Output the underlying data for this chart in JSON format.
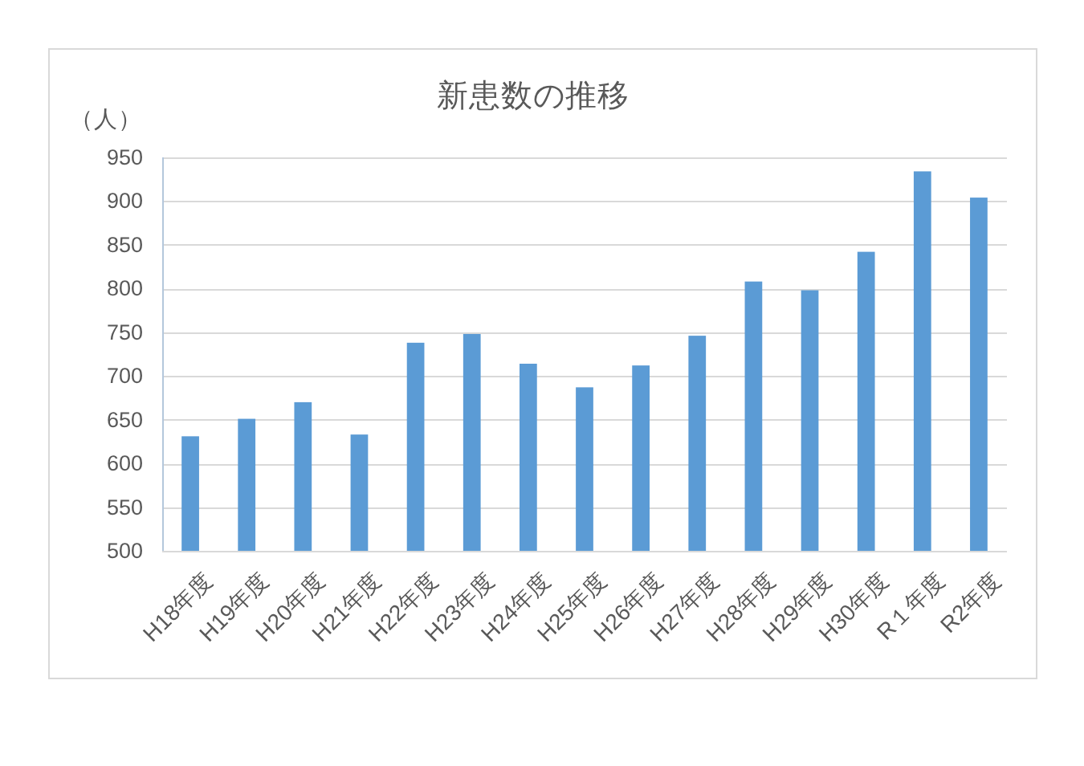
{
  "chart_data": {
    "type": "bar",
    "title": "新患数の推移",
    "ylabel": "（人）",
    "categories": [
      "H18年度",
      "H19年度",
      "H20年度",
      "H21年度",
      "H22年度",
      "H23年度",
      "H24年度",
      "H25年度",
      "H26年度",
      "H27年度",
      "H28年度",
      "H29年度",
      "H30年度",
      "R１年度",
      "R2年度"
    ],
    "values": [
      631,
      651,
      670,
      633,
      738,
      748,
      714,
      687,
      712,
      746,
      808,
      798,
      842,
      934,
      904
    ],
    "color": "#5b9bd5",
    "ylim": [
      500,
      950
    ],
    "yticks": [
      500,
      550,
      600,
      650,
      700,
      750,
      800,
      850,
      900,
      950
    ],
    "grid": "y"
  }
}
